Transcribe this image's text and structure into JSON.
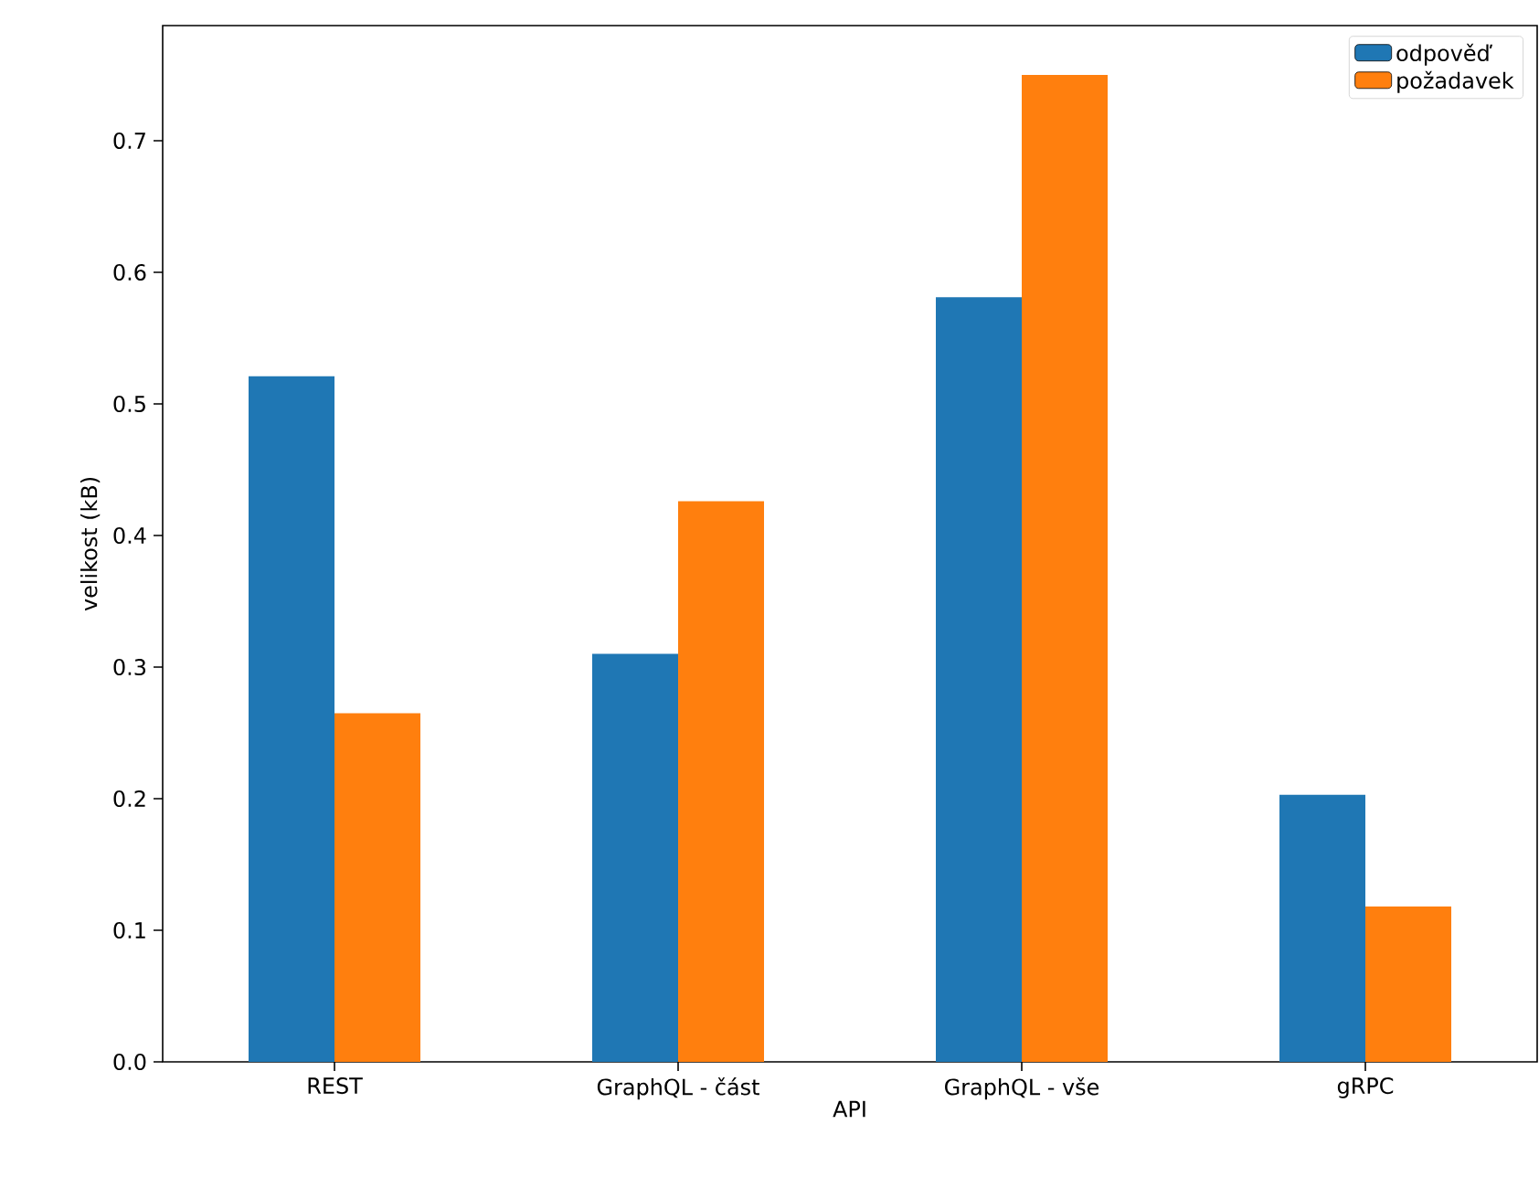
{
  "chart_data": {
    "type": "bar",
    "xlabel": "API",
    "ylabel": "velikost (kB)",
    "categories": [
      "REST",
      "GraphQL - část",
      "GraphQL - vše",
      "gRPC"
    ],
    "series": [
      {
        "name": "odpověď",
        "color": "#1f77b4",
        "values": [
          0.521,
          0.31,
          0.581,
          0.203
        ]
      },
      {
        "name": "požadavek",
        "color": "#ff7f0e",
        "values": [
          0.265,
          0.426,
          0.75,
          0.118
        ]
      }
    ],
    "ylim": [
      0,
      0.7875
    ],
    "yticks": [
      {
        "value": 0,
        "label": "0.0"
      },
      0.1,
      0.2,
      0.3,
      0.4,
      0.5,
      0.6,
      0.7
    ],
    "legend": "top right",
    "grid": false
  }
}
